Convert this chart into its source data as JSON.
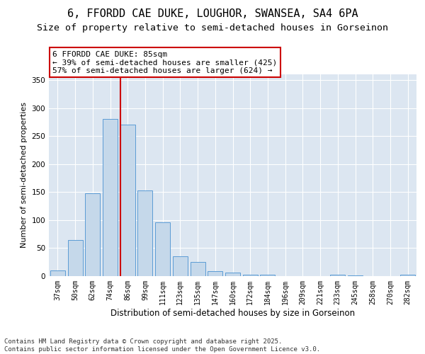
{
  "title_line1": "6, FFORDD CAE DUKE, LOUGHOR, SWANSEA, SA4 6PA",
  "title_line2": "Size of property relative to semi-detached houses in Gorseinon",
  "xlabel": "Distribution of semi-detached houses by size in Gorseinon",
  "ylabel": "Number of semi-detached properties",
  "categories": [
    "37sqm",
    "50sqm",
    "62sqm",
    "74sqm",
    "86sqm",
    "99sqm",
    "111sqm",
    "123sqm",
    "135sqm",
    "147sqm",
    "160sqm",
    "172sqm",
    "184sqm",
    "196sqm",
    "209sqm",
    "221sqm",
    "233sqm",
    "245sqm",
    "258sqm",
    "270sqm",
    "282sqm"
  ],
  "values": [
    10,
    64,
    148,
    280,
    270,
    153,
    96,
    36,
    25,
    9,
    6,
    3,
    2,
    0,
    0,
    0,
    3,
    1,
    0,
    0,
    2
  ],
  "bar_color": "#c5d8ea",
  "bar_edge_color": "#5b9bd5",
  "vline_color": "#cc0000",
  "vline_x_bar_index": 4,
  "annotation_line1": "6 FFORDD CAE DUKE: 85sqm",
  "annotation_line2": "← 39% of semi-detached houses are smaller (425)",
  "annotation_line3": "57% of semi-detached houses are larger (624) →",
  "annotation_box_color": "#ffffff",
  "annotation_edge_color": "#cc0000",
  "ylim_max": 360,
  "yticks": [
    0,
    50,
    100,
    150,
    200,
    250,
    300,
    350
  ],
  "plot_bg_color": "#dce6f1",
  "footer_line1": "Contains HM Land Registry data © Crown copyright and database right 2025.",
  "footer_line2": "Contains public sector information licensed under the Open Government Licence v3.0.",
  "title_fontsize": 11,
  "subtitle_fontsize": 9.5,
  "ylabel_fontsize": 8,
  "xlabel_fontsize": 8.5,
  "tick_fontsize": 7,
  "annotation_fontsize": 8,
  "footer_fontsize": 6.5
}
